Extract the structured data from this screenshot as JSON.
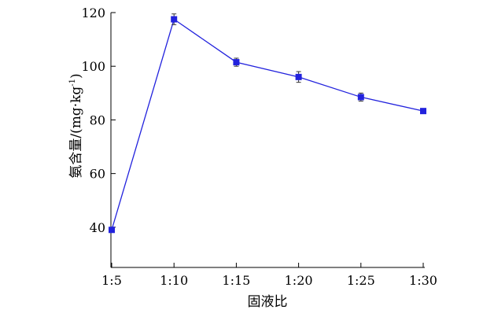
{
  "chart_data": {
    "type": "line",
    "categories": [
      "1:5",
      "1:10",
      "1:15",
      "1:20",
      "1:25",
      "1:30"
    ],
    "series": [
      {
        "values": [
          39,
          117.5,
          101.5,
          96,
          88.5,
          83.3
        ],
        "errors": [
          0.8,
          2.0,
          1.5,
          2.0,
          1.5,
          0.7
        ],
        "color": "#2222dd",
        "marker": "square"
      }
    ],
    "ylim": [
      25,
      120
    ],
    "yticks": [
      40,
      60,
      80,
      100,
      120
    ],
    "ytick_labels": [
      "40",
      "60",
      "80",
      "100",
      "120"
    ],
    "xlabel": "固液比",
    "ylabel_main": "氨含量/(mg·kg",
    "ylabel_sup": "-1",
    "ylabel_end": ")",
    "grid": false,
    "legend": false
  }
}
